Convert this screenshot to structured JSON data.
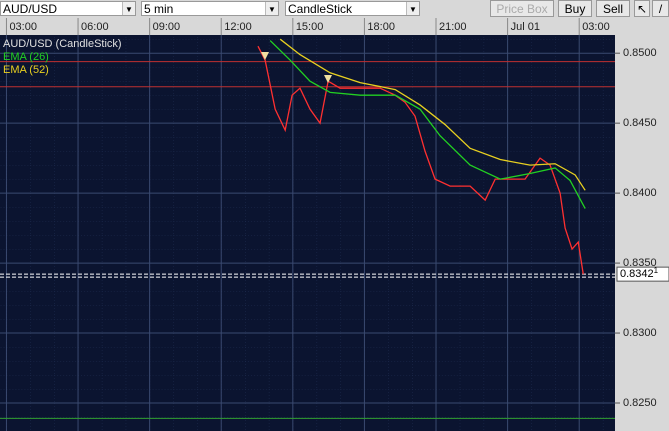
{
  "toolbar": {
    "symbol": "AUD/USD",
    "interval": "5 min",
    "chart_style": "CandleStick",
    "buttons": [
      "Price Box",
      "Buy",
      "Sell"
    ]
  },
  "chart_data": {
    "type": "line",
    "legend": [
      "AUD/USD (CandleStick)",
      "EMA (26)",
      "EMA (52)"
    ],
    "xlim": [
      2.73,
      28.5
    ],
    "xticks": [
      {
        "value": 3,
        "label": "03:00"
      },
      {
        "value": 6,
        "label": "06:00"
      },
      {
        "value": 9,
        "label": "09:00"
      },
      {
        "value": 12,
        "label": "12:00"
      },
      {
        "value": 15,
        "label": "15:00"
      },
      {
        "value": 18,
        "label": "18:00"
      },
      {
        "value": 21,
        "label": "21:00"
      },
      {
        "value": 24,
        "label": "Jul 01"
      },
      {
        "value": 27,
        "label": "03:00"
      }
    ],
    "ylim": [
      0.823,
      0.8513
    ],
    "yticks": [
      {
        "value": 0.85,
        "label": "0.8500"
      },
      {
        "value": 0.845,
        "label": "0.8450"
      },
      {
        "value": 0.84,
        "label": "0.8400"
      },
      {
        "value": 0.835,
        "label": "0.8350"
      },
      {
        "value": 0.83,
        "label": "0.8300"
      },
      {
        "value": 0.825,
        "label": "0.8250"
      }
    ],
    "grid": true,
    "series": [
      {
        "name": "AUD/USD (CandleStick)",
        "color": "#ff3030",
        "x": [
          13.54,
          13.84,
          14.26,
          14.68,
          14.97,
          15.3,
          15.72,
          16.14,
          16.48,
          16.98,
          17.82,
          18.66,
          19.29,
          19.7,
          20.12,
          20.54,
          20.96,
          21.59,
          22.43,
          23.06,
          23.48,
          24.11,
          24.73,
          25.36,
          25.78,
          26.2,
          26.41,
          26.7,
          26.96,
          27.17
        ],
        "values": [
          0.8505,
          0.8495,
          0.846,
          0.8445,
          0.847,
          0.8475,
          0.846,
          0.845,
          0.848,
          0.8475,
          0.8475,
          0.8475,
          0.847,
          0.8465,
          0.8455,
          0.843,
          0.841,
          0.8405,
          0.8405,
          0.8395,
          0.841,
          0.841,
          0.841,
          0.8425,
          0.842,
          0.84,
          0.8375,
          0.836,
          0.8365,
          0.8342
        ]
      },
      {
        "name": "EMA (26)",
        "color": "#22d022",
        "x": [
          14.05,
          14.89,
          15.72,
          16.56,
          17.82,
          19.29,
          20.33,
          21.17,
          22.43,
          23.69,
          24.94,
          25.99,
          26.62,
          27.25
        ],
        "values": [
          0.8509,
          0.8495,
          0.848,
          0.8472,
          0.847,
          0.847,
          0.846,
          0.8441,
          0.842,
          0.841,
          0.8414,
          0.8418,
          0.8409,
          0.8389
        ]
      },
      {
        "name": "EMA (52)",
        "color": "#e8d020",
        "x": [
          14.47,
          15.3,
          16.56,
          17.82,
          19.29,
          20.33,
          21.38,
          22.43,
          23.69,
          24.94,
          25.99,
          26.83,
          27.25
        ],
        "values": [
          0.851,
          0.8499,
          0.8486,
          0.8479,
          0.8474,
          0.8463,
          0.8449,
          0.8432,
          0.8424,
          0.842,
          0.8421,
          0.8413,
          0.8402
        ]
      }
    ],
    "levels": [
      {
        "value": 0.8494,
        "color": "#c03030"
      },
      {
        "value": 0.8476,
        "color": "#c03030"
      },
      {
        "value": 0.8239,
        "color": "#30a030"
      }
    ],
    "current_price": {
      "value": 0.83421,
      "label": "0.8342",
      "pip": "1"
    }
  }
}
